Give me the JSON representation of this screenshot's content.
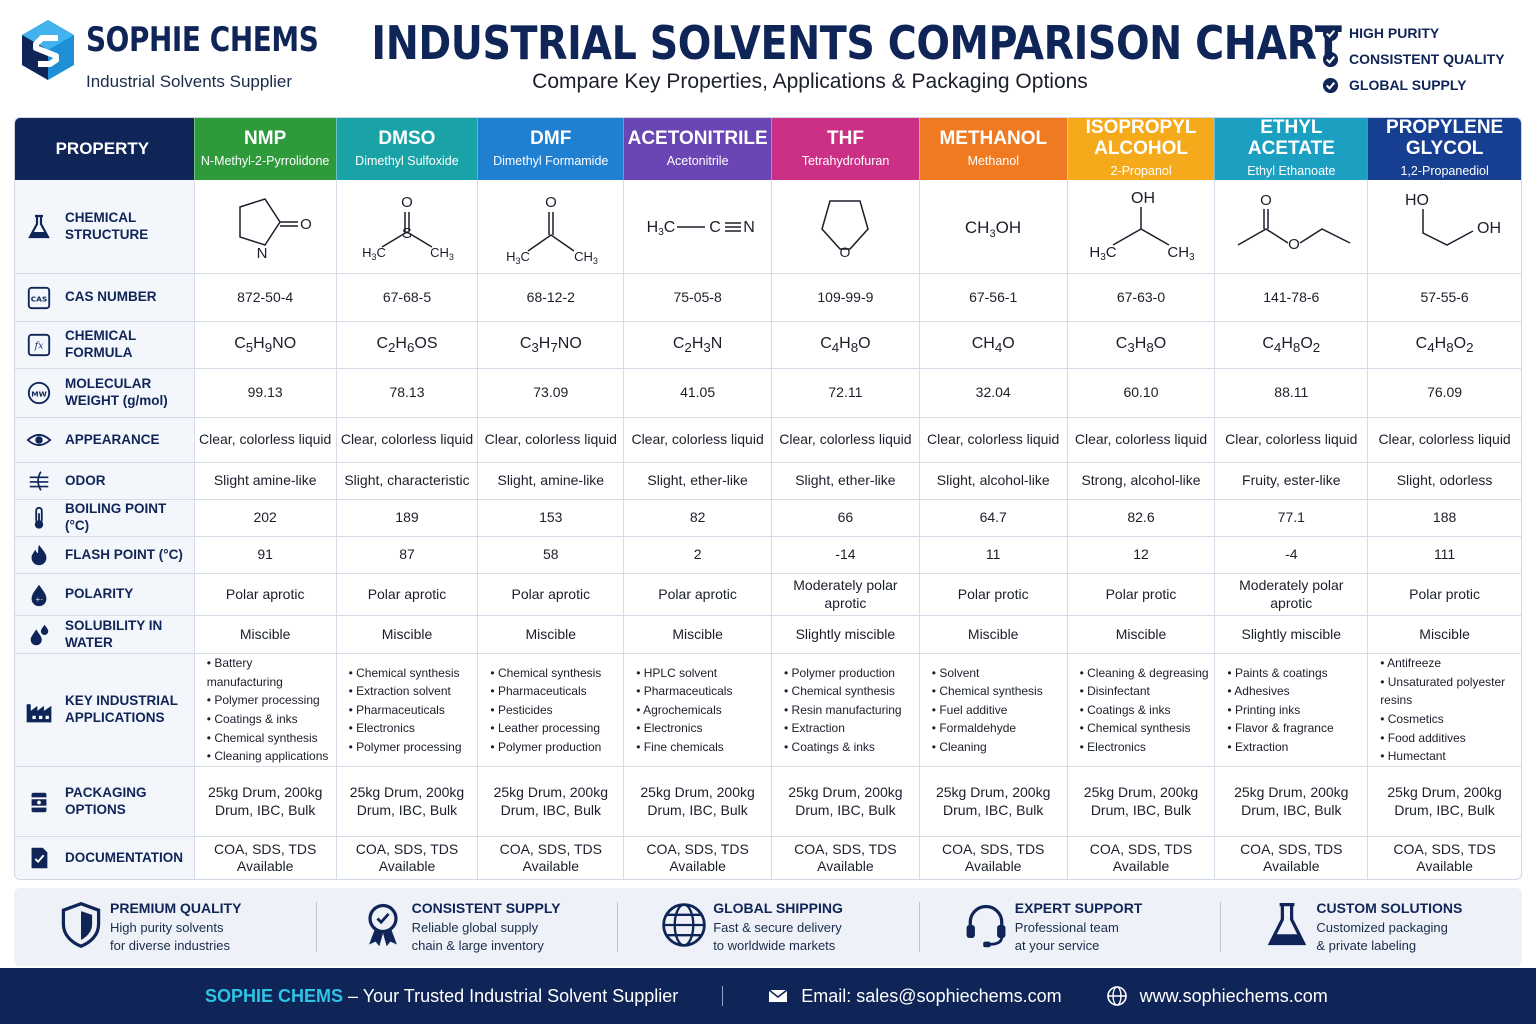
{
  "header": {
    "brand": "SOPHIE CHEMS",
    "tagline": "Industrial Solvents Supplier",
    "title": "INDUSTRIAL SOLVENTS COMPARISON CHART",
    "subtitle": "Compare Key Properties, Applications & Packaging Options",
    "badges": [
      "HIGH PURITY",
      "CONSISTENT QUALITY",
      "GLOBAL SUPPLY"
    ]
  },
  "table": {
    "property_header": "PROPERTY",
    "solvents": [
      {
        "name": "NMP",
        "sub": "N-Methyl-2-Pyrrolidone",
        "color": "#2f9a3c",
        "cas": "872-50-4",
        "mw": "99.13",
        "appearance": "Clear, colorless liquid",
        "odor": "Slight amine-like",
        "bp": "202",
        "fp": "91",
        "polarity": "Polar aprotic",
        "solubility": "Miscible",
        "applications": [
          "Battery manufacturing",
          "Polymer processing",
          "Coatings & inks",
          "Chemical synthesis",
          "Cleaning applications"
        ],
        "packaging": "25kg Drum, 200kg Drum, IBC, Bulk",
        "documentation": "COA, SDS, TDS Available"
      },
      {
        "name": "DMSO",
        "sub": "Dimethyl Sulfoxide",
        "color": "#1aa3a6",
        "cas": "67-68-5",
        "mw": "78.13",
        "appearance": "Clear, colorless liquid",
        "odor": "Slight, characteristic",
        "bp": "189",
        "fp": "87",
        "polarity": "Polar aprotic",
        "solubility": "Miscible",
        "applications": [
          "Chemical synthesis",
          "Extraction solvent",
          "Pharmaceuticals",
          "Electronics",
          "Polymer processing"
        ],
        "packaging": "25kg Drum, 200kg Drum, IBC, Bulk",
        "documentation": "COA, SDS, TDS Available"
      },
      {
        "name": "DMF",
        "sub": "Dimethyl Formamide",
        "color": "#1f7fd0",
        "cas": "68-12-2",
        "mw": "73.09",
        "appearance": "Clear, colorless liquid",
        "odor": "Slight, amine-like",
        "bp": "153",
        "fp": "58",
        "polarity": "Polar aprotic",
        "solubility": "Miscible",
        "applications": [
          "Chemical synthesis",
          "Pharmaceuticals",
          "Pesticides",
          "Leather processing",
          "Polymer production"
        ],
        "packaging": "25kg Drum, 200kg Drum, IBC, Bulk",
        "documentation": "COA, SDS, TDS Available"
      },
      {
        "name": "ACETONITRILE",
        "sub": "Acetonitrile",
        "color": "#6a45b4",
        "cas": "75-05-8",
        "mw": "41.05",
        "appearance": "Clear, colorless liquid",
        "odor": "Slight, ether-like",
        "bp": "82",
        "fp": "2",
        "polarity": "Polar aprotic",
        "solubility": "Miscible",
        "applications": [
          "HPLC solvent",
          "Pharmaceuticals",
          "Agrochemicals",
          "Electronics",
          "Fine chemicals"
        ],
        "packaging": "25kg Drum, 200kg Drum, IBC, Bulk",
        "documentation": "COA, SDS, TDS Available"
      },
      {
        "name": "THF",
        "sub": "Tetrahydrofuran",
        "color": "#cc2f86",
        "cas": "109-99-9",
        "mw": "72.11",
        "appearance": "Clear, colorless liquid",
        "odor": "Slight, ether-like",
        "bp": "66",
        "fp": "-14",
        "polarity": "Moderately polar aprotic",
        "solubility": "Slightly miscible",
        "applications": [
          "Polymer production",
          "Chemical synthesis",
          "Resin manufacturing",
          "Extraction",
          "Coatings & inks"
        ],
        "packaging": "25kg Drum, 200kg Drum, IBC, Bulk",
        "documentation": "COA, SDS, TDS Available"
      },
      {
        "name": "METHANOL",
        "sub": "Methanol",
        "color": "#ef7a22",
        "cas": "67-56-1",
        "mw": "32.04",
        "appearance": "Clear, colorless liquid",
        "odor": "Slight, alcohol-like",
        "bp": "64.7",
        "fp": "11",
        "polarity": "Polar protic",
        "solubility": "Miscible",
        "applications": [
          "Solvent",
          "Chemical synthesis",
          "Fuel additive",
          "Formaldehyde",
          "Cleaning"
        ],
        "packaging": "25kg Drum, 200kg Drum, IBC, Bulk",
        "documentation": "COA, SDS, TDS Available"
      },
      {
        "name": "ISOPROPYL ALCOHOL",
        "sub": "2-Propanol",
        "color": "#f5aa1c",
        "cas": "67-63-0",
        "mw": "60.10",
        "appearance": "Clear, colorless liquid",
        "odor": "Strong, alcohol-like",
        "bp": "82.6",
        "fp": "12",
        "polarity": "Polar protic",
        "solubility": "Miscible",
        "applications": [
          "Cleaning & degreasing",
          "Disinfectant",
          "Coatings & inks",
          "Chemical synthesis",
          "Electronics"
        ],
        "packaging": "25kg Drum, 200kg Drum, IBC, Bulk",
        "documentation": "COA, SDS, TDS Available"
      },
      {
        "name": "ETHYL ACETATE",
        "sub": "Ethyl Ethanoate",
        "color": "#1ba0c2",
        "cas": "141-78-6",
        "mw": "88.11",
        "appearance": "Clear, colorless liquid",
        "odor": "Fruity, ester-like",
        "bp": "77.1",
        "fp": "-4",
        "polarity": "Moderately polar aprotic",
        "solubility": "Slightly miscible",
        "applications": [
          "Paints & coatings",
          "Adhesives",
          "Printing inks",
          "Flavor & fragrance",
          "Extraction"
        ],
        "packaging": "25kg Drum, 200kg Drum, IBC, Bulk",
        "documentation": "COA, SDS, TDS Available"
      },
      {
        "name": "PROPYLENE GLYCOL",
        "sub": "1,2-Propanediol",
        "color": "#173f91",
        "cas": "57-55-6",
        "mw": "76.09",
        "appearance": "Clear, colorless liquid",
        "odor": "Slight, odorless",
        "bp": "188",
        "fp": "111",
        "polarity": "Polar protic",
        "solubility": "Miscible",
        "applications": [
          "Antifreeze",
          "Unsaturated polyester resins",
          "Cosmetics",
          "Food additives",
          "Humectant"
        ],
        "packaging": "25kg Drum, 200kg Drum, IBC, Bulk",
        "documentation": "COA, SDS, TDS Available"
      }
    ],
    "property_labels": {
      "structure": "CHEMICAL STRUCTURE",
      "cas": "CAS NUMBER",
      "formula": "CHEMICAL FORMULA",
      "mw": "MOLECULAR WEIGHT (g/mol)",
      "appearance": "APPEARANCE",
      "odor": "ODOR",
      "bp": "BOILING POINT (°C)",
      "fp": "FLASH POINT (°C)",
      "polarity": "POLARITY",
      "solubility": "SOLUBILITY IN WATER",
      "applications": "KEY INDUSTRIAL APPLICATIONS",
      "packaging": "PACKAGING OPTIONS",
      "documentation": "DOCUMENTATION"
    },
    "property_icons": {
      "structure": "flask-icon",
      "cas": "cas-icon",
      "formula": "formula-icon",
      "mw": "mw-icon",
      "appearance": "eye-icon",
      "odor": "odor-icon",
      "bp": "thermometer-icon",
      "fp": "flame-icon",
      "polarity": "polarity-drop-icon",
      "solubility": "water-drops-icon",
      "applications": "factory-icon",
      "packaging": "drum-icon",
      "documentation": "document-icon"
    }
  },
  "features": [
    {
      "title": "PREMIUM QUALITY",
      "line1": "High purity solvents",
      "line2": "for diverse industries",
      "icon": "shield-icon"
    },
    {
      "title": "CONSISTENT SUPPLY",
      "line1": "Reliable global supply",
      "line2": "chain & large inventory",
      "icon": "award-icon"
    },
    {
      "title": "GLOBAL SHIPPING",
      "line1": "Fast & secure delivery",
      "line2": "to worldwide markets",
      "icon": "globe-icon"
    },
    {
      "title": "EXPERT SUPPORT",
      "line1": "Professional team",
      "line2": "at your service",
      "icon": "headset-icon"
    },
    {
      "title": "CUSTOM SOLUTIONS",
      "line1": "Customized packaging",
      "line2": "& private labeling",
      "icon": "flask-icon"
    }
  ],
  "footer": {
    "brand": "SOPHIE CHEMS",
    "slogan": " – Your Trusted Industrial Solvent Supplier",
    "email": "Email: sales@sophiechems.com",
    "website": "www.sophiechems.com"
  },
  "colors": {
    "navy": "#0f2557",
    "accent": "#2ec4e6"
  }
}
